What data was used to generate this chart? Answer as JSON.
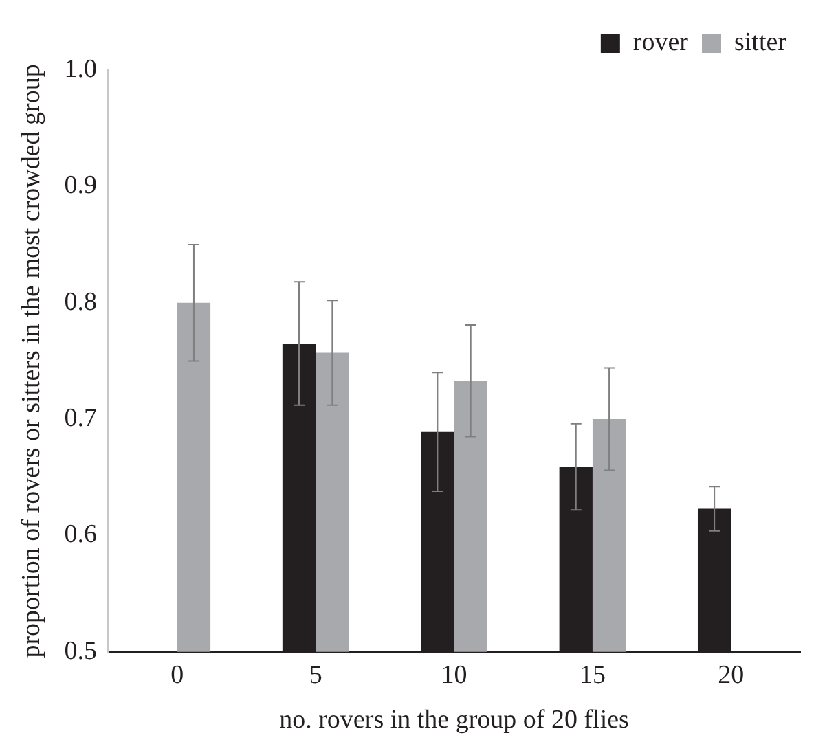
{
  "chart_data": {
    "type": "bar",
    "xlabel": "no. rovers in the group of 20 flies",
    "ylabel": "proportion of rovers or sitters in the most crowded group",
    "categories": [
      "0",
      "5",
      "10",
      "15",
      "20"
    ],
    "series": [
      {
        "name": "rover",
        "color": "#231f20",
        "values": [
          null,
          0.765,
          0.689,
          0.659,
          0.623
        ],
        "errors": [
          null,
          0.053,
          0.051,
          0.037,
          0.019
        ]
      },
      {
        "name": "sitter",
        "color": "#a7a9ac",
        "values": [
          0.8,
          0.757,
          0.733,
          0.7,
          null
        ],
        "errors": [
          0.05,
          0.045,
          0.048,
          0.044,
          null
        ]
      }
    ],
    "ylim": [
      0.5,
      1.0
    ],
    "yticks": [
      {
        "value": 0.5,
        "label": "0.5"
      },
      {
        "value": 0.6,
        "label": "0.6"
      },
      {
        "value": 0.7,
        "label": "0.7"
      },
      {
        "value": 0.8,
        "label": "0.8"
      },
      {
        "value": 0.9,
        "label": "0.9"
      },
      {
        "value": 1,
        "label": "1.0"
      }
    ],
    "grid": false,
    "legend": "top right"
  }
}
